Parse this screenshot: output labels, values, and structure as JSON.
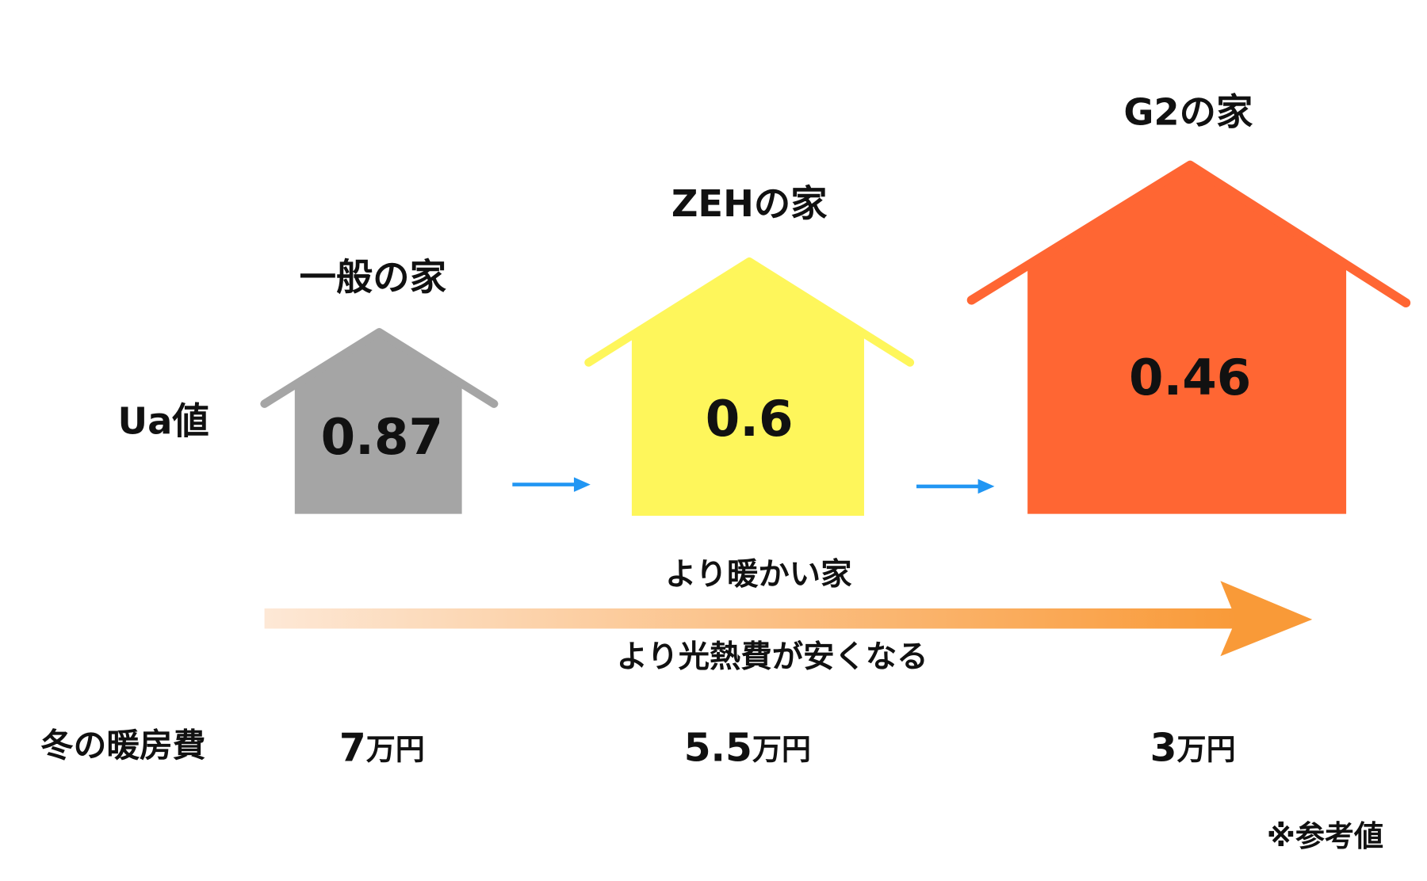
{
  "houses": [
    {
      "label": "一般の家",
      "ua": 0.87,
      "cost": 7,
      "cost_unit": "万円"
    },
    {
      "label": "ZEHの家",
      "ua": 0.6,
      "cost": 5.5,
      "cost_unit": "万円"
    },
    {
      "label": "G2の家",
      "ua": 0.46,
      "cost": 3,
      "cost_unit": "万円"
    }
  ],
  "row_labels": {
    "ua": "Ua値",
    "cost": "冬の暖房費"
  },
  "arrow": {
    "top": "より暖かい家",
    "bottom": "より光熱費が安くなる"
  },
  "note": "※参考値"
}
